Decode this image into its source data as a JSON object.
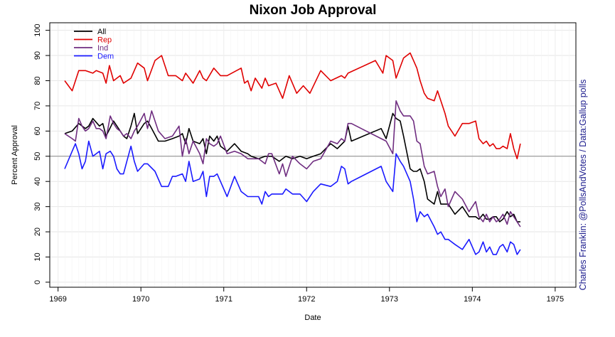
{
  "chart_data": {
    "type": "line",
    "title": "Nixon Job Approval",
    "xlabel": "Date",
    "ylabel": "Percent Approval",
    "credit": "Charles Franklin: @PollsAndVotes / Data:Gallup polls",
    "xlim": [
      1968.9,
      1975.25
    ],
    "ylim": [
      -2,
      103
    ],
    "x_ticks": [
      "1969",
      "1970",
      "1971",
      "1972",
      "1973",
      "1974",
      "1975"
    ],
    "y_ticks": [
      "0",
      "10",
      "20",
      "30",
      "40",
      "50",
      "60",
      "70",
      "80",
      "90",
      "100"
    ],
    "grid": true,
    "reference_line": 50,
    "legend_position": "top-left",
    "series": [
      {
        "name": "All",
        "color": "#000000",
        "x": [
          1969.08,
          1969.17,
          1969.25,
          1969.33,
          1969.37,
          1969.42,
          1969.5,
          1969.54,
          1969.58,
          1969.67,
          1969.75,
          1969.79,
          1969.83,
          1969.88,
          1969.92,
          1969.96,
          1970.04,
          1970.08,
          1970.13,
          1970.21,
          1970.29,
          1970.38,
          1970.46,
          1970.5,
          1970.54,
          1970.58,
          1970.63,
          1970.71,
          1970.75,
          1970.79,
          1970.83,
          1970.88,
          1970.92,
          1970.96,
          1971.04,
          1971.13,
          1971.21,
          1971.29,
          1971.33,
          1971.42,
          1971.5,
          1971.58,
          1971.67,
          1971.75,
          1971.83,
          1971.92,
          1972.0,
          1972.08,
          1972.17,
          1972.29,
          1972.37,
          1972.46,
          1972.5,
          1972.54,
          1972.9,
          1972.96,
          1973.04,
          1973.08,
          1973.13,
          1973.17,
          1973.25,
          1973.29,
          1973.33,
          1973.37,
          1973.42,
          1973.46,
          1973.54,
          1973.58,
          1973.62,
          1973.67,
          1973.71,
          1973.79,
          1973.88,
          1973.96,
          1974.04,
          1974.08,
          1974.13,
          1974.17,
          1974.21,
          1974.25,
          1974.29,
          1974.33,
          1974.37,
          1974.42,
          1974.46,
          1974.5,
          1974.54,
          1974.58
        ],
        "y": [
          59,
          60,
          63,
          61,
          62,
          65,
          62,
          63,
          58,
          64,
          60,
          58,
          57,
          62,
          67,
          59,
          63,
          64,
          61,
          56,
          56,
          57,
          58,
          59,
          55,
          61,
          56,
          55,
          57,
          51,
          58,
          56,
          58,
          54,
          52,
          55,
          52,
          51,
          50,
          49,
          50,
          50,
          48,
          50,
          49,
          50,
          49,
          50,
          51,
          55,
          53,
          56,
          62,
          56,
          61,
          57,
          67,
          65,
          64,
          58,
          45,
          44,
          44,
          45,
          40,
          33,
          31,
          36,
          31,
          31,
          31,
          27,
          30,
          26,
          26,
          25,
          27,
          25,
          25,
          26,
          26,
          24,
          25,
          28,
          26,
          27,
          24,
          24
        ]
      },
      {
        "name": "Rep",
        "color": "#e00000",
        "x": [
          1969.08,
          1969.17,
          1969.25,
          1969.33,
          1969.42,
          1969.46,
          1969.54,
          1969.58,
          1969.62,
          1969.67,
          1969.75,
          1969.79,
          1969.88,
          1969.96,
          1970.04,
          1970.08,
          1970.17,
          1970.25,
          1970.33,
          1970.42,
          1970.5,
          1970.54,
          1970.63,
          1970.71,
          1970.75,
          1970.79,
          1970.88,
          1970.96,
          1971.04,
          1971.21,
          1971.25,
          1971.29,
          1971.33,
          1971.38,
          1971.46,
          1971.5,
          1971.54,
          1971.63,
          1971.71,
          1971.79,
          1971.88,
          1971.96,
          1972.04,
          1972.17,
          1972.29,
          1972.42,
          1972.46,
          1972.5,
          1972.83,
          1972.92,
          1972.96,
          1973.04,
          1973.08,
          1973.17,
          1973.25,
          1973.29,
          1973.33,
          1973.37,
          1973.42,
          1973.46,
          1973.54,
          1973.58,
          1973.67,
          1973.71,
          1973.79,
          1973.88,
          1973.96,
          1974.04,
          1974.08,
          1974.13,
          1974.17,
          1974.21,
          1974.25,
          1974.29,
          1974.33,
          1974.37,
          1974.42,
          1974.46,
          1974.5,
          1974.54,
          1974.58
        ],
        "y": [
          80,
          76,
          84,
          84,
          83,
          84,
          83,
          79,
          86,
          80,
          82,
          79,
          81,
          87,
          85,
          80,
          88,
          90,
          82,
          82,
          80,
          83,
          79,
          84,
          81,
          80,
          85,
          82,
          82,
          85,
          79,
          80,
          76,
          81,
          77,
          81,
          78,
          79,
          73,
          82,
          75,
          78,
          75,
          84,
          80,
          82,
          81,
          83,
          88,
          83,
          90,
          88,
          81,
          89,
          91,
          88,
          85,
          80,
          75,
          73,
          72,
          76,
          67,
          62,
          58,
          63,
          63,
          64,
          57,
          55,
          56,
          54,
          55,
          53,
          53,
          54,
          53,
          59,
          53,
          49,
          55
        ]
      },
      {
        "name": "Ind",
        "color": "#6f2d80",
        "x": [
          1969.08,
          1969.17,
          1969.21,
          1969.25,
          1969.29,
          1969.33,
          1969.37,
          1969.42,
          1969.46,
          1969.5,
          1969.54,
          1969.58,
          1969.63,
          1969.67,
          1969.71,
          1969.75,
          1969.79,
          1969.83,
          1969.88,
          1969.92,
          1969.96,
          1970.04,
          1970.08,
          1970.13,
          1970.21,
          1970.29,
          1970.38,
          1970.46,
          1970.5,
          1970.54,
          1970.58,
          1970.63,
          1970.71,
          1970.75,
          1970.79,
          1970.83,
          1970.88,
          1970.92,
          1970.96,
          1971.04,
          1971.13,
          1971.21,
          1971.29,
          1971.33,
          1971.42,
          1971.5,
          1971.54,
          1971.58,
          1971.67,
          1971.71,
          1971.75,
          1971.83,
          1971.92,
          1972.0,
          1972.08,
          1972.17,
          1972.29,
          1972.37,
          1972.42,
          1972.46,
          1972.5,
          1972.54,
          1972.9,
          1972.96,
          1973.04,
          1973.08,
          1973.13,
          1973.17,
          1973.25,
          1973.29,
          1973.33,
          1973.37,
          1973.42,
          1973.46,
          1973.54,
          1973.58,
          1973.62,
          1973.67,
          1973.71,
          1973.79,
          1973.88,
          1973.96,
          1974.04,
          1974.08,
          1974.13,
          1974.17,
          1974.21,
          1974.25,
          1974.29,
          1974.33,
          1974.37,
          1974.42,
          1974.46,
          1974.5,
          1974.54,
          1974.58
        ],
        "y": [
          59,
          57,
          56,
          65,
          62,
          60,
          61,
          64,
          61,
          61,
          60,
          57,
          66,
          63,
          61,
          60,
          58,
          59,
          57,
          60,
          62,
          67,
          61,
          68,
          60,
          57,
          58,
          62,
          50,
          57,
          51,
          56,
          51,
          47,
          57,
          55,
          54,
          55,
          58,
          51,
          52,
          51,
          49,
          49,
          49,
          47,
          51,
          51,
          43,
          47,
          42,
          50,
          47,
          45,
          48,
          49,
          56,
          55,
          57,
          56,
          63,
          63,
          57,
          56,
          51,
          72,
          68,
          66,
          66,
          64,
          56,
          55,
          46,
          43,
          44,
          38,
          34,
          37,
          30,
          36,
          33,
          28,
          32,
          26,
          24,
          27,
          24,
          26,
          24,
          25,
          27,
          23,
          28,
          26,
          24,
          22
        ]
      },
      {
        "name": "Dem",
        "color": "#1a1aff",
        "x": [
          1969.08,
          1969.17,
          1969.21,
          1969.25,
          1969.29,
          1969.33,
          1969.37,
          1969.42,
          1969.46,
          1969.5,
          1969.54,
          1969.58,
          1969.63,
          1969.67,
          1969.71,
          1969.75,
          1969.79,
          1969.83,
          1969.88,
          1969.92,
          1969.96,
          1970.04,
          1970.08,
          1970.17,
          1970.25,
          1970.33,
          1970.38,
          1970.42,
          1970.5,
          1970.54,
          1970.58,
          1970.63,
          1970.71,
          1970.75,
          1970.79,
          1970.83,
          1970.88,
          1970.92,
          1970.96,
          1971.04,
          1971.13,
          1971.21,
          1971.29,
          1971.33,
          1971.42,
          1971.46,
          1971.5,
          1971.54,
          1971.58,
          1971.67,
          1971.71,
          1971.75,
          1971.83,
          1971.92,
          1972.0,
          1972.08,
          1972.17,
          1972.29,
          1972.37,
          1972.42,
          1972.46,
          1972.5,
          1972.54,
          1972.9,
          1972.96,
          1973.04,
          1973.08,
          1973.13,
          1973.17,
          1973.25,
          1973.29,
          1973.33,
          1973.37,
          1973.42,
          1973.46,
          1973.54,
          1973.58,
          1973.62,
          1973.67,
          1973.71,
          1973.79,
          1973.88,
          1973.96,
          1974.04,
          1974.08,
          1974.13,
          1974.17,
          1974.21,
          1974.25,
          1974.29,
          1974.33,
          1974.37,
          1974.42,
          1974.46,
          1974.5,
          1974.54,
          1974.58
        ],
        "y": [
          45,
          52,
          55,
          51,
          45,
          48,
          56,
          50,
          51,
          52,
          45,
          51,
          52,
          50,
          45,
          43,
          43,
          48,
          54,
          48,
          44,
          47,
          47,
          44,
          38,
          38,
          42,
          42,
          43,
          40,
          48,
          40,
          41,
          44,
          34,
          42,
          42,
          43,
          40,
          34,
          42,
          36,
          34,
          34,
          34,
          31,
          36,
          34,
          35,
          35,
          35,
          37,
          35,
          35,
          32,
          36,
          39,
          38,
          40,
          46,
          45,
          39,
          40,
          46,
          40,
          36,
          51,
          48,
          46,
          40,
          33,
          24,
          28,
          26,
          27,
          22,
          19,
          20,
          17,
          17,
          15,
          13,
          17,
          11,
          12,
          16,
          12,
          14,
          11,
          11,
          14,
          15,
          12,
          16,
          15,
          11,
          13
        ]
      }
    ]
  }
}
